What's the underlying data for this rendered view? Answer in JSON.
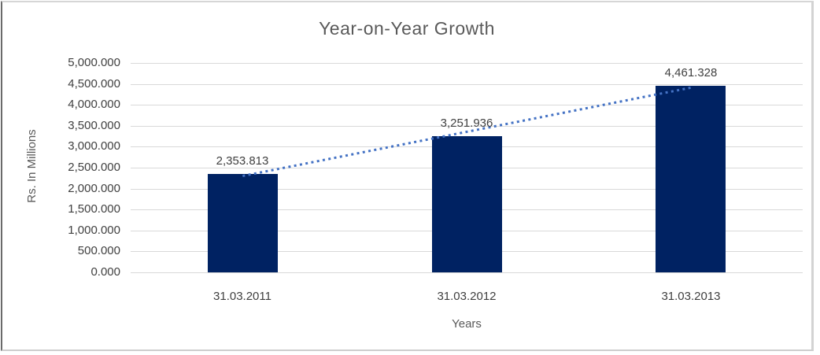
{
  "chart_data": {
    "type": "bar",
    "title": "Year-on-Year Growth",
    "xlabel": "Years",
    "ylabel": "Rs. In Millions",
    "categories": [
      "31.03.2011",
      "31.03.2012",
      "31.03.2013"
    ],
    "values": [
      2353.813,
      3251.936,
      4461.328
    ],
    "value_labels": [
      "2,353.813",
      "3,251.936",
      "4,461.328"
    ],
    "ylim": [
      0,
      5000
    ],
    "y_ticks": [
      0,
      500,
      1000,
      1500,
      2000,
      2500,
      3000,
      3500,
      4000,
      4500,
      5000
    ],
    "y_tick_labels": [
      "0.000",
      "500.000",
      "1,000.000",
      "1,500.000",
      "2,000.000",
      "2,500.000",
      "3,000.000",
      "3,500.000",
      "4,000.000",
      "4,500.000",
      "5,000.000"
    ],
    "grid": "horizontal",
    "legend_position": "none",
    "colors": {
      "bar": "#002262",
      "trendline": "#4472C4",
      "gridline": "#D9D9D9",
      "axis_line": "#D9D9D9",
      "tick_label": "#404040",
      "title": "#595959",
      "axis_title": "#595959",
      "data_label": "#404040"
    },
    "trendline": {
      "type": "linear",
      "style": "dotted",
      "endpoint_values": [
        2301.9,
        4409.4
      ]
    }
  }
}
